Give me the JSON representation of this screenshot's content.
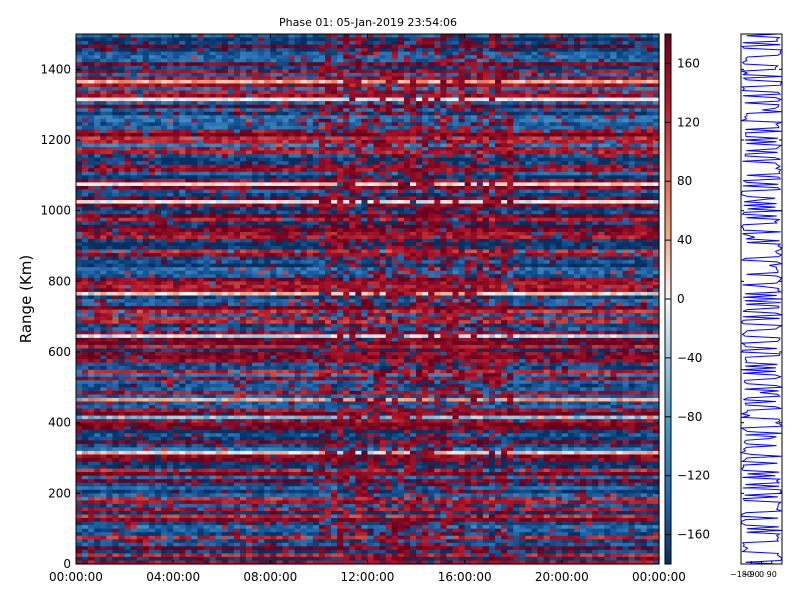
{
  "chart_data": [
    {
      "type": "heatmap",
      "title": "Phase 01: 05-Jan-2019 23:54:06",
      "xlabel": "",
      "ylabel": "Range (Km)",
      "x_tick_labels": [
        "00:00:00",
        "04:00:00",
        "08:00:00",
        "12:00:00",
        "16:00:00",
        "20:00:00",
        "00:00:00"
      ],
      "x_tick_hours": [
        0,
        4,
        8,
        12,
        16,
        20,
        24
      ],
      "xlim_hours": [
        0,
        24
      ],
      "y_ticks": [
        0,
        200,
        400,
        600,
        800,
        1000,
        1200,
        1400
      ],
      "ylim": [
        0,
        1500
      ],
      "colorbar": {
        "ticks": [
          160,
          120,
          80,
          40,
          0,
          -40,
          -80,
          -120,
          -160
        ],
        "range": [
          -180,
          180
        ],
        "colormap": "RdBu_r",
        "colors": [
          "#053061",
          "#2166ac",
          "#4393c3",
          "#92c5de",
          "#f7f7f7",
          "#f4a582",
          "#d6604d",
          "#b2182b",
          "#67001f"
        ]
      },
      "pattern": "horizontal stripes of phase between -180 and 180 degrees across range, alternating deep red and deep blue; more reddish between 10:00 and 18:00"
    },
    {
      "type": "line",
      "title": "",
      "x_tick_labels": [
        "-180",
        "-90",
        "0",
        "90"
      ],
      "x_ticks": [
        -180,
        -90,
        0,
        90
      ],
      "xlim": [
        -180,
        180
      ],
      "ylim": [
        0,
        1500
      ],
      "series": [
        {
          "color": "#0000ff",
          "description": "phase profile vs range, oscillating across the full -180..180 range"
        }
      ]
    }
  ]
}
